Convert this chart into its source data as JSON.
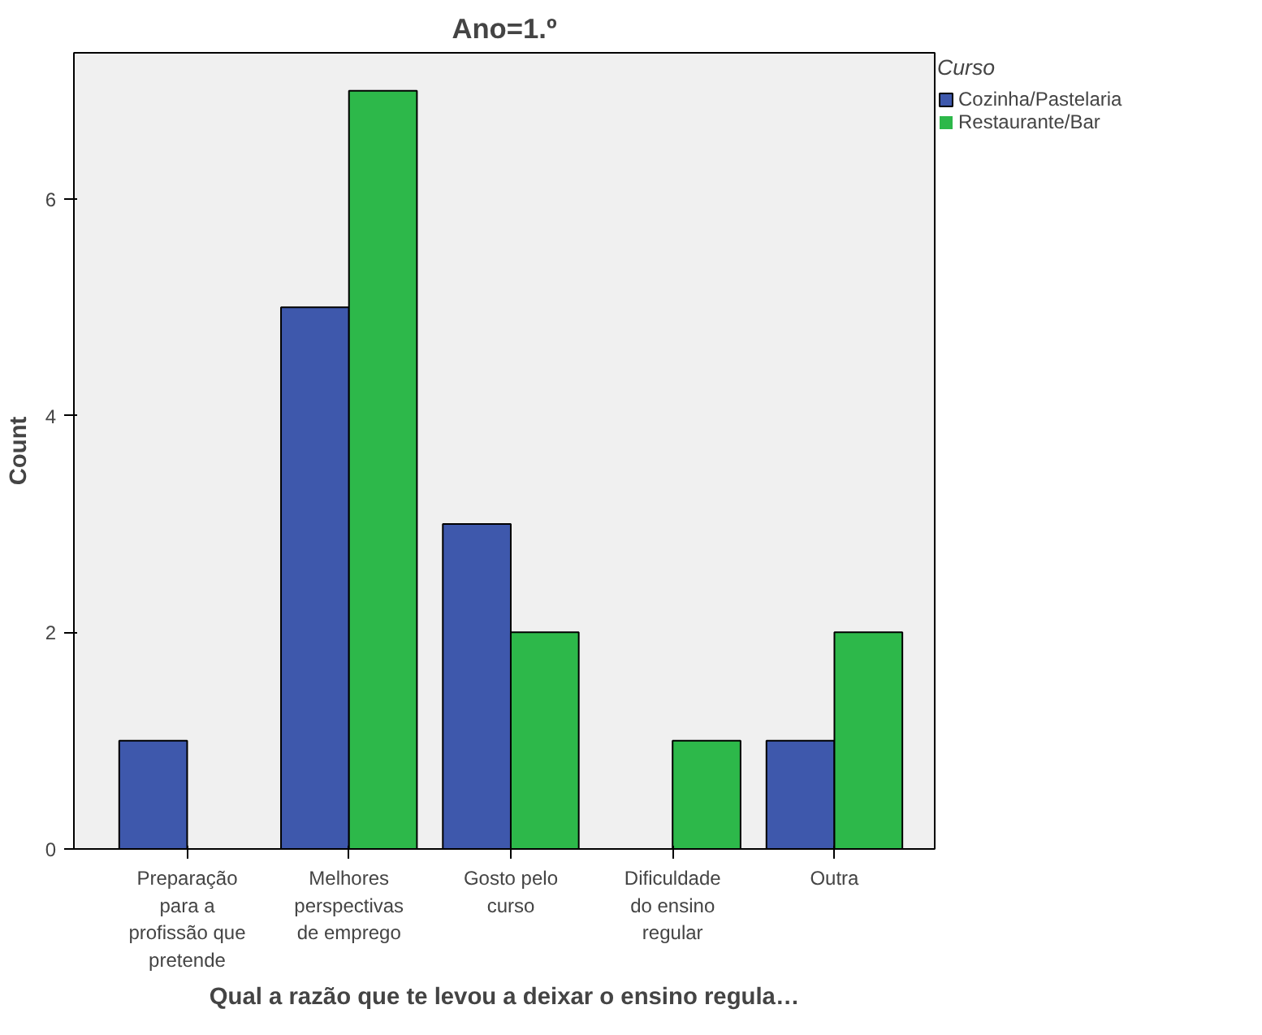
{
  "chart_data": {
    "type": "bar",
    "title": "Ano=1.º",
    "xlabel": "Qual a razão que te levou a deixar o ensino regula…",
    "ylabel": "Count",
    "legend_title": "Curso",
    "categories": [
      "Preparação para a profissão que pretende",
      "Melhores perspectivas de emprego",
      "Gosto pelo curso",
      "Dificuldade do ensino regular",
      "Outra"
    ],
    "series": [
      {
        "name": "Cozinha/Pastelaria",
        "color": "#3e58ac",
        "values": [
          1,
          5,
          3,
          0,
          1
        ]
      },
      {
        "name": "Restaurante/Bar",
        "color": "#2db84a",
        "values": [
          0,
          7,
          2,
          1,
          2
        ]
      }
    ],
    "ylim": [
      0,
      7.35
    ],
    "yticks": [
      0,
      2,
      4,
      6
    ],
    "grid": false,
    "legend": "top right"
  }
}
